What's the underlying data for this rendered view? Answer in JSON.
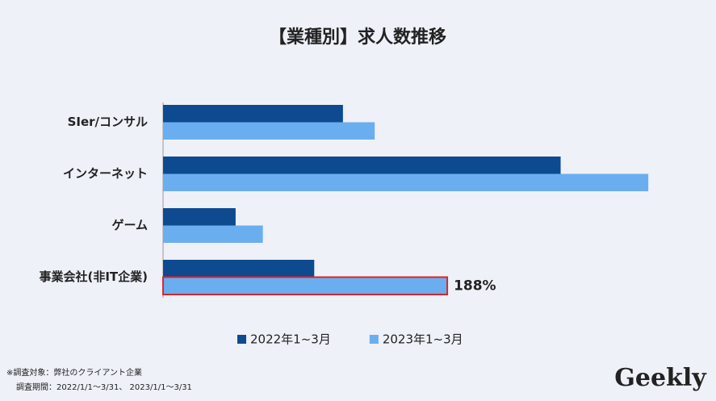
{
  "chart_data": {
    "type": "bar",
    "orientation": "horizontal",
    "title": "【業種別】求人数推移",
    "categories": [
      "SIer/コンサル",
      "インターネット",
      "ゲーム",
      "事業会社(非IT企業)"
    ],
    "series": [
      {
        "name": "2022年1~3月",
        "color": "#0d4a8f",
        "values": [
          119,
          263,
          48,
          100
        ]
      },
      {
        "name": "2023年1~3月",
        "color": "#6aaef0",
        "values": [
          140,
          321,
          66,
          188
        ],
        "value_labels": [
          null,
          null,
          null,
          "188%"
        ],
        "label_color": "#d9262c"
      }
    ],
    "xlim": [
      0,
      330
    ],
    "legend": "bottom"
  },
  "notes": [
    "※調査対象：弊社のクライアント企業",
    "調査期間：2022/1/1～3/31、 2023/1/1～3/31"
  ],
  "logo": "Geekly"
}
